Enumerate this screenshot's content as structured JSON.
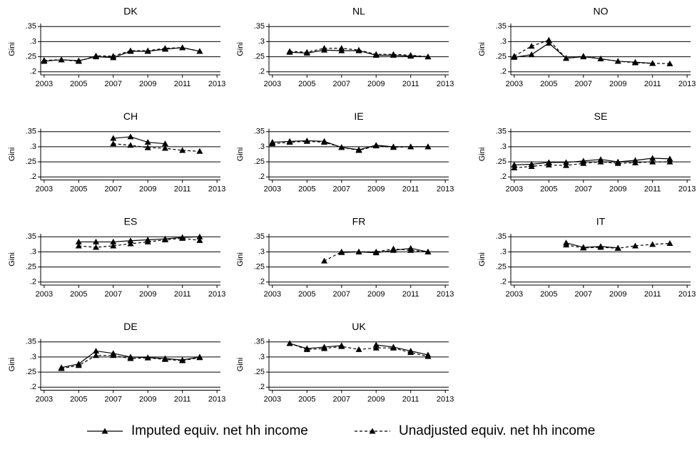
{
  "chart_data": [
    {
      "type": "line",
      "title": "DK",
      "ylabel": "Gini",
      "x": [
        2003,
        2004,
        2005,
        2006,
        2007,
        2008,
        2009,
        2010,
        2011,
        2012
      ],
      "series": [
        {
          "name": "Imputed equiv. net hh income",
          "color": "#000000",
          "dash": false,
          "values": [
            0.235,
            0.24,
            0.237,
            0.25,
            0.247,
            0.268,
            0.268,
            0.275,
            0.28,
            0.268
          ]
        },
        {
          "name": "Unadjusted equiv. net hh income",
          "color": "#000000",
          "dash": true,
          "values": [
            0.238,
            0.24,
            0.235,
            0.253,
            0.252,
            0.27,
            0.27,
            0.278,
            0.28,
            0.268
          ]
        }
      ],
      "xlim": [
        2002.8,
        2013.2
      ],
      "ylim": [
        0.19,
        0.36
      ],
      "xticks": [
        2003,
        2005,
        2007,
        2009,
        2011,
        2013
      ],
      "yticks": [
        {
          "value": 0.2,
          "label": ".2"
        },
        {
          "value": 0.25,
          "label": ".25"
        },
        {
          "value": 0.3,
          "label": ".3"
        },
        {
          "value": 0.35,
          "label": ".35"
        }
      ],
      "grid": true
    },
    {
      "type": "line",
      "title": "NL",
      "ylabel": "Gini",
      "x": [
        2004,
        2005,
        2006,
        2007,
        2008,
        2009,
        2010,
        2011,
        2012
      ],
      "series": [
        {
          "color": "#000000",
          "dash": false,
          "values": [
            0.265,
            0.262,
            0.272,
            0.27,
            0.27,
            0.255,
            0.255,
            0.252,
            0.25
          ]
        },
        {
          "color": "#000000",
          "dash": true,
          "values": [
            0.268,
            0.265,
            0.278,
            0.278,
            0.272,
            0.258,
            0.258,
            0.255,
            0.25
          ]
        }
      ],
      "xlim": [
        2002.8,
        2013.2
      ],
      "ylim": [
        0.19,
        0.36
      ],
      "xticks": [
        2003,
        2005,
        2007,
        2009,
        2011,
        2013
      ],
      "yticks": [
        {
          "value": 0.2,
          "label": ".2"
        },
        {
          "value": 0.25,
          "label": ".25"
        },
        {
          "value": 0.3,
          "label": ".3"
        },
        {
          "value": 0.35,
          "label": ".35"
        }
      ],
      "grid": true
    },
    {
      "type": "line",
      "title": "NO",
      "ylabel": "Gini",
      "x": [
        2003,
        2004,
        2005,
        2006,
        2007,
        2008,
        2009,
        2010,
        2011,
        2012
      ],
      "series": [
        {
          "color": "#000000",
          "dash": false,
          "values": [
            0.248,
            0.257,
            0.295,
            0.245,
            0.25,
            0.243,
            0.235,
            0.232,
            0.228,
            null
          ]
        },
        {
          "color": "#000000",
          "dash": true,
          "values": [
            0.252,
            0.285,
            0.305,
            0.245,
            0.252,
            0.243,
            0.235,
            0.23,
            0.228,
            0.227
          ]
        }
      ],
      "xlim": [
        2002.8,
        2013.2
      ],
      "ylim": [
        0.19,
        0.36
      ],
      "xticks": [
        2003,
        2005,
        2007,
        2009,
        2011,
        2013
      ],
      "yticks": [
        {
          "value": 0.2,
          "label": ".2"
        },
        {
          "value": 0.25,
          "label": ".25"
        },
        {
          "value": 0.3,
          "label": ".3"
        },
        {
          "value": 0.35,
          "label": ".35"
        }
      ],
      "grid": true
    },
    {
      "type": "line",
      "title": "CH",
      "ylabel": "Gini",
      "x": [
        2007,
        2008,
        2009,
        2010,
        2011,
        2012
      ],
      "series": [
        {
          "color": "#000000",
          "dash": false,
          "values": [
            0.328,
            0.333,
            0.315,
            0.31,
            null,
            null
          ]
        },
        {
          "color": "#000000",
          "dash": true,
          "values": [
            0.31,
            0.305,
            0.297,
            0.295,
            0.288,
            0.285
          ]
        }
      ],
      "xlim": [
        2002.8,
        2013.2
      ],
      "ylim": [
        0.19,
        0.36
      ],
      "xticks": [
        2003,
        2005,
        2007,
        2009,
        2011,
        2013
      ],
      "yticks": [
        {
          "value": 0.2,
          "label": ".2"
        },
        {
          "value": 0.25,
          "label": ".25"
        },
        {
          "value": 0.3,
          "label": ".3"
        },
        {
          "value": 0.35,
          "label": ".35"
        }
      ],
      "grid": true
    },
    {
      "type": "line",
      "title": "IE",
      "ylabel": "Gini",
      "x": [
        2003,
        2004,
        2005,
        2006,
        2007,
        2008,
        2009,
        2010,
        2011,
        2012
      ],
      "series": [
        {
          "color": "#000000",
          "dash": false,
          "values": [
            0.315,
            0.318,
            0.32,
            0.318,
            0.298,
            0.29,
            0.305,
            0.3,
            0.3,
            0.3
          ]
        },
        {
          "color": "#000000",
          "dash": true,
          "values": [
            0.31,
            0.315,
            0.318,
            0.315,
            0.298,
            0.288,
            0.303,
            0.298,
            0.3,
            0.3
          ]
        }
      ],
      "xlim": [
        2002.8,
        2013.2
      ],
      "ylim": [
        0.19,
        0.36
      ],
      "xticks": [
        2003,
        2005,
        2007,
        2009,
        2011,
        2013
      ],
      "yticks": [
        {
          "value": 0.2,
          "label": ".2"
        },
        {
          "value": 0.25,
          "label": ".25"
        },
        {
          "value": 0.3,
          "label": ".3"
        },
        {
          "value": 0.35,
          "label": ".35"
        }
      ],
      "grid": true
    },
    {
      "type": "line",
      "title": "SE",
      "ylabel": "Gini",
      "x": [
        2003,
        2004,
        2005,
        2006,
        2007,
        2008,
        2009,
        2010,
        2011,
        2012
      ],
      "series": [
        {
          "color": "#000000",
          "dash": false,
          "values": [
            0.24,
            0.242,
            0.248,
            0.248,
            0.253,
            0.258,
            0.25,
            0.255,
            0.262,
            0.26
          ]
        },
        {
          "color": "#000000",
          "dash": true,
          "values": [
            0.23,
            0.235,
            0.24,
            0.238,
            0.245,
            0.25,
            0.245,
            0.247,
            0.25,
            0.25
          ]
        }
      ],
      "xlim": [
        2002.8,
        2013.2
      ],
      "ylim": [
        0.19,
        0.36
      ],
      "xticks": [
        2003,
        2005,
        2007,
        2009,
        2011,
        2013
      ],
      "yticks": [
        {
          "value": 0.2,
          "label": ".2"
        },
        {
          "value": 0.25,
          "label": ".25"
        },
        {
          "value": 0.3,
          "label": ".3"
        },
        {
          "value": 0.35,
          "label": ".35"
        }
      ],
      "grid": true
    },
    {
      "type": "line",
      "title": "ES",
      "ylabel": "Gini",
      "x": [
        2005,
        2006,
        2007,
        2008,
        2009,
        2010,
        2011,
        2012
      ],
      "series": [
        {
          "color": "#000000",
          "dash": false,
          "values": [
            0.333,
            0.333,
            0.333,
            0.337,
            0.34,
            0.343,
            0.348,
            0.35
          ]
        },
        {
          "color": "#000000",
          "dash": true,
          "values": [
            0.32,
            0.315,
            0.32,
            0.327,
            0.333,
            0.34,
            0.345,
            0.338
          ]
        }
      ],
      "xlim": [
        2002.8,
        2013.2
      ],
      "ylim": [
        0.19,
        0.36
      ],
      "xticks": [
        2003,
        2005,
        2007,
        2009,
        2011,
        2013
      ],
      "yticks": [
        {
          "value": 0.2,
          "label": ".2"
        },
        {
          "value": 0.25,
          "label": ".25"
        },
        {
          "value": 0.3,
          "label": ".3"
        },
        {
          "value": 0.35,
          "label": ".35"
        }
      ],
      "grid": true
    },
    {
      "type": "line",
      "title": "FR",
      "ylabel": "Gini",
      "x": [
        2006,
        2007,
        2008,
        2009,
        2010,
        2011,
        2012
      ],
      "series": [
        {
          "color": "#000000",
          "dash": false,
          "values": [
            null,
            0.298,
            0.3,
            0.297,
            0.305,
            0.312,
            0.3
          ]
        },
        {
          "color": "#000000",
          "dash": true,
          "values": [
            0.27,
            0.3,
            0.3,
            0.3,
            0.31,
            0.305,
            0.3
          ]
        }
      ],
      "xlim": [
        2002.8,
        2013.2
      ],
      "ylim": [
        0.19,
        0.36
      ],
      "xticks": [
        2003,
        2005,
        2007,
        2009,
        2011,
        2013
      ],
      "yticks": [
        {
          "value": 0.2,
          "label": ".2"
        },
        {
          "value": 0.25,
          "label": ".25"
        },
        {
          "value": 0.3,
          "label": ".3"
        },
        {
          "value": 0.35,
          "label": ".35"
        }
      ],
      "grid": true
    },
    {
      "type": "line",
      "title": "IT",
      "ylabel": "Gini",
      "x": [
        2006,
        2007,
        2008,
        2009,
        2010,
        2011,
        2012
      ],
      "series": [
        {
          "color": "#000000",
          "dash": false,
          "values": [
            0.33,
            0.315,
            0.318,
            0.313,
            null,
            null,
            null
          ]
        },
        {
          "color": "#000000",
          "dash": true,
          "values": [
            0.323,
            0.313,
            0.315,
            0.312,
            0.32,
            0.325,
            0.328
          ]
        }
      ],
      "xlim": [
        2002.8,
        2013.2
      ],
      "ylim": [
        0.19,
        0.36
      ],
      "xticks": [
        2003,
        2005,
        2007,
        2009,
        2011,
        2013
      ],
      "yticks": [
        {
          "value": 0.2,
          "label": ".2"
        },
        {
          "value": 0.25,
          "label": ".25"
        },
        {
          "value": 0.3,
          "label": ".3"
        },
        {
          "value": 0.35,
          "label": ".35"
        }
      ],
      "grid": true
    },
    {
      "type": "line",
      "title": "DE",
      "ylabel": "Gini",
      "x": [
        2004,
        2005,
        2006,
        2007,
        2008,
        2009,
        2010,
        2011,
        2012
      ],
      "series": [
        {
          "color": "#000000",
          "dash": false,
          "values": [
            0.265,
            0.277,
            0.32,
            0.312,
            0.3,
            0.298,
            0.295,
            0.29,
            0.3
          ]
        },
        {
          "color": "#000000",
          "dash": true,
          "values": [
            0.262,
            0.272,
            0.305,
            0.305,
            0.295,
            0.297,
            0.292,
            0.288,
            0.298
          ]
        }
      ],
      "xlim": [
        2002.8,
        2013.2
      ],
      "ylim": [
        0.19,
        0.36
      ],
      "xticks": [
        2003,
        2005,
        2007,
        2009,
        2011,
        2013
      ],
      "yticks": [
        {
          "value": 0.2,
          "label": ".2"
        },
        {
          "value": 0.25,
          "label": ".25"
        },
        {
          "value": 0.3,
          "label": ".3"
        },
        {
          "value": 0.35,
          "label": ".35"
        }
      ],
      "grid": true
    },
    {
      "type": "line",
      "title": "UK",
      "ylabel": "Gini",
      "x": [
        2004,
        2005,
        2006,
        2007,
        2008,
        2009,
        2010,
        2011,
        2012
      ],
      "series": [
        {
          "color": "#000000",
          "dash": false,
          "values": [
            0.345,
            0.328,
            0.333,
            0.338,
            null,
            0.34,
            0.333,
            0.32,
            0.307
          ]
        },
        {
          "color": "#000000",
          "dash": true,
          "values": [
            0.345,
            0.325,
            0.328,
            0.335,
            0.325,
            0.33,
            0.33,
            0.315,
            0.302
          ]
        }
      ],
      "xlim": [
        2002.8,
        2013.2
      ],
      "ylim": [
        0.19,
        0.36
      ],
      "xticks": [
        2003,
        2005,
        2007,
        2009,
        2011,
        2013
      ],
      "yticks": [
        {
          "value": 0.2,
          "label": ".2"
        },
        {
          "value": 0.25,
          "label": ".25"
        },
        {
          "value": 0.3,
          "label": ".3"
        },
        {
          "value": 0.35,
          "label": ".35"
        }
      ],
      "grid": true
    }
  ]
}
